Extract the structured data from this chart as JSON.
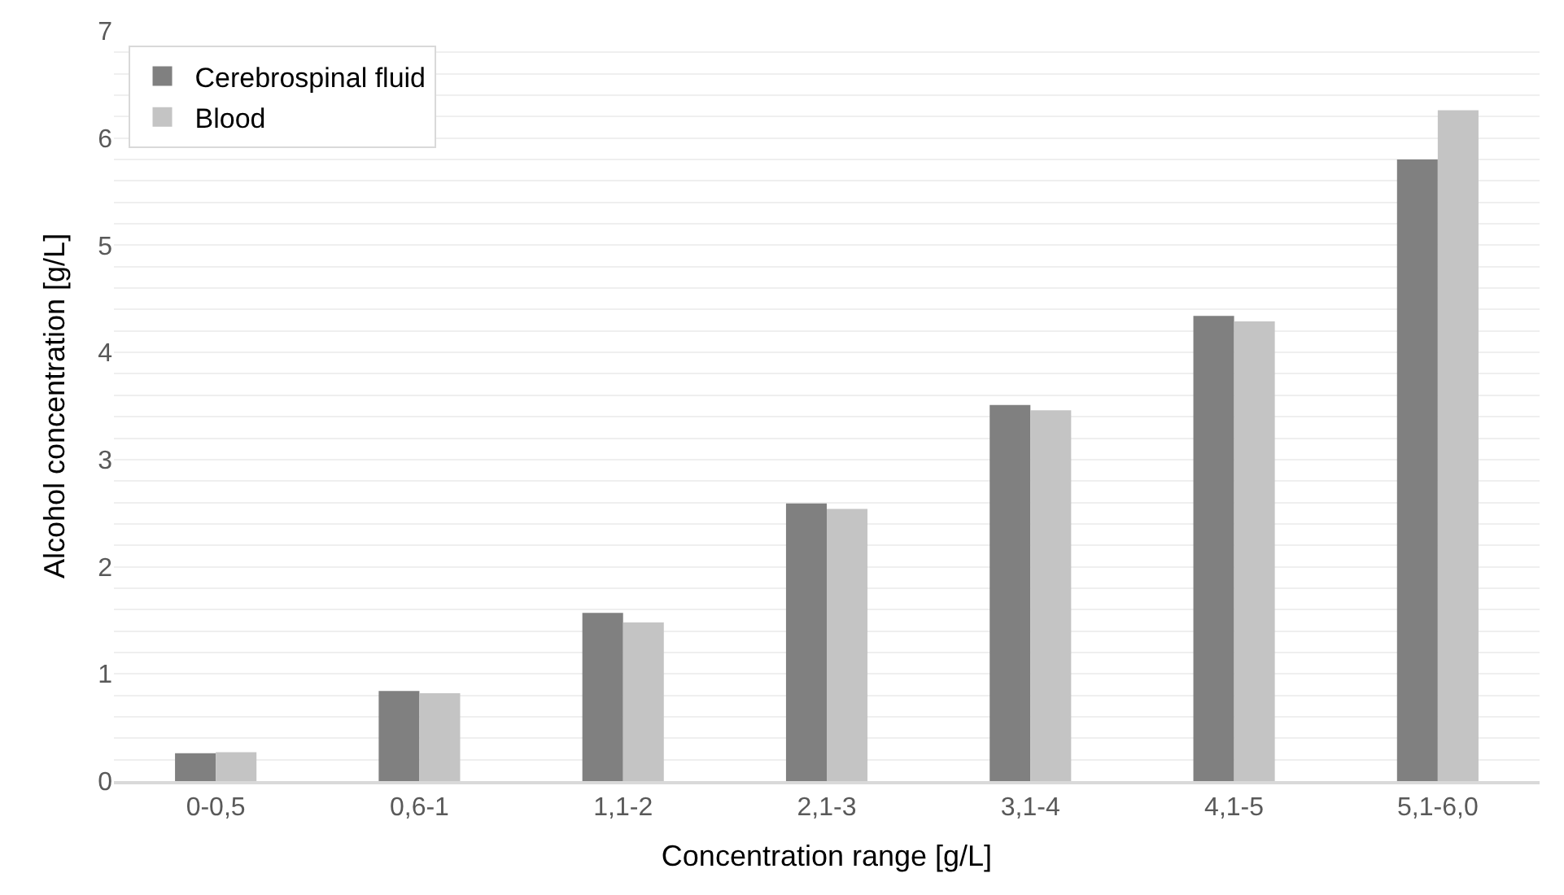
{
  "chart_data": {
    "type": "bar",
    "xlabel": "Concentration range [g/L]",
    "ylabel": "Alcohol concentration [g/L]",
    "categories": [
      "0-0,5",
      "0,6-1",
      "1,1-2",
      "2,1-3",
      "3,1-4",
      "4,1-5",
      "5,1-6,0"
    ],
    "series": [
      {
        "name": "Cerebrospinal fluid",
        "color": "#808080",
        "values": [
          0.26,
          0.84,
          1.57,
          2.59,
          3.51,
          4.34,
          5.8
        ]
      },
      {
        "name": "Blood",
        "color": "#c4c4c4",
        "values": [
          0.27,
          0.82,
          1.48,
          2.54,
          3.46,
          4.29,
          6.26
        ]
      }
    ],
    "ylim": [
      0,
      7
    ],
    "yticks": [
      0,
      {
        "value": 0.2,
        "label": null
      },
      {
        "value": 0.4,
        "label": null
      },
      {
        "value": 0.6,
        "label": null
      },
      {
        "value": 0.8,
        "label": null
      },
      1,
      {
        "value": 1.2,
        "label": null
      },
      {
        "value": 1.4,
        "label": null
      },
      {
        "value": 1.6,
        "label": null
      },
      {
        "value": 1.8,
        "label": null
      },
      2,
      {
        "value": 2.2,
        "label": null
      },
      {
        "value": 2.4,
        "label": null
      },
      {
        "value": 2.6,
        "label": null
      },
      {
        "value": 2.8,
        "label": null
      },
      3,
      {
        "value": 3.2,
        "label": null
      },
      {
        "value": 3.4,
        "label": null
      },
      {
        "value": 3.6,
        "label": null
      },
      {
        "value": 3.8,
        "label": null
      },
      4,
      {
        "value": 4.2,
        "label": null
      },
      {
        "value": 4.4,
        "label": null
      },
      {
        "value": 4.6,
        "label": null
      },
      {
        "value": 4.8,
        "label": null
      },
      5,
      {
        "value": 5.2,
        "label": null
      },
      {
        "value": 5.4,
        "label": null
      },
      {
        "value": 5.6,
        "label": null
      },
      {
        "value": 5.8,
        "label": null
      },
      6,
      {
        "value": 6.2,
        "label": null
      },
      {
        "value": 6.4,
        "label": null
      },
      {
        "value": 6.6,
        "label": null
      },
      {
        "value": 6.8,
        "label": null
      },
      7
    ],
    "grid": "y",
    "legend": "top left"
  }
}
